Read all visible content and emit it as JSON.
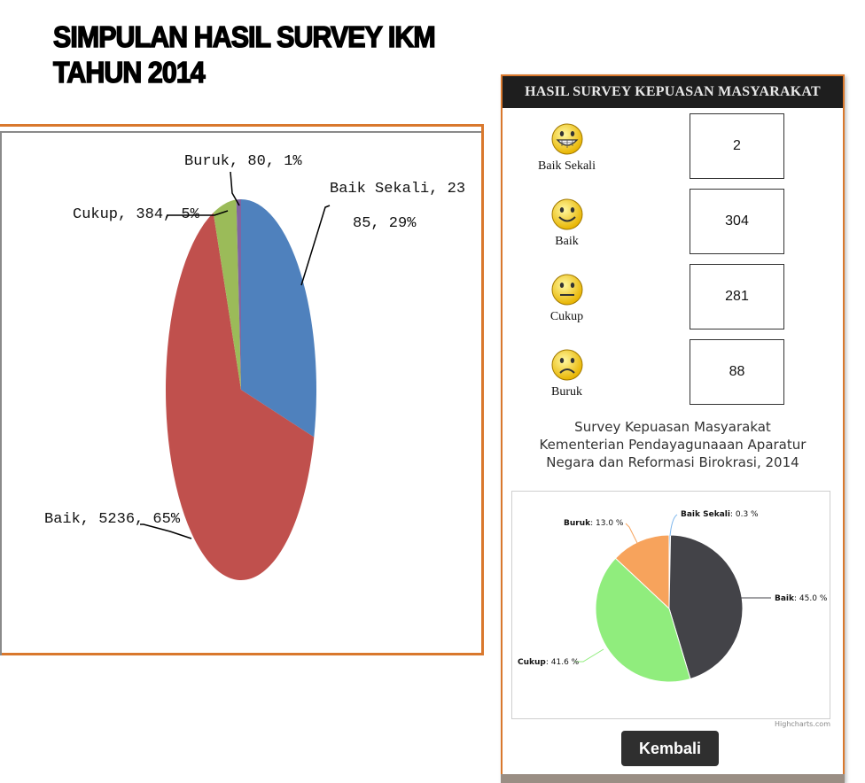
{
  "page_title": {
    "line1": "SIMPULAN HASIL SURVEY IKM",
    "line2": "TAHUN 2014"
  },
  "right_panel": {
    "header": "HASIL SURVEY KEPUASAN MASYARAKAT",
    "ratings": [
      {
        "label": "Baik Sekali",
        "count": "2",
        "icon": "grin-smiley-icon"
      },
      {
        "label": "Baik",
        "count": "304",
        "icon": "smile-smiley-icon"
      },
      {
        "label": "Cukup",
        "count": "281",
        "icon": "neutral-smiley-icon"
      },
      {
        "label": "Buruk",
        "count": "88",
        "icon": "sad-smiley-icon"
      }
    ],
    "caption": {
      "line1": "Survey Kepuasan Masyarakat",
      "line2": "Kementerian Pendayagunaaan Aparatur",
      "line3": "Negara dan Reformasi Birokrasi, 2014"
    },
    "credits": "Highcharts.com",
    "back_button": "Kembali"
  },
  "chart_data": [
    {
      "type": "pie",
      "slices": [
        {
          "name": "Baik Sekali",
          "value": 2385,
          "percent": 29,
          "color": "#4f81bd",
          "label_line1": "Baik Sekali, 23",
          "label_line2": "85, 29%"
        },
        {
          "name": "Baik",
          "value": 5236,
          "percent": 65,
          "color": "#c0504d",
          "label": "Baik, 5236, 65%"
        },
        {
          "name": "Cukup",
          "value": 384,
          "percent": 5,
          "color": "#9bbb59",
          "label": "Cukup, 384, 5%"
        },
        {
          "name": "Buruk",
          "value": 80,
          "percent": 1,
          "color": "#8064a2",
          "label": "Buruk, 80, 1%"
        }
      ]
    },
    {
      "type": "pie",
      "slices": [
        {
          "name": "Baik Sekali",
          "percent": 0.3,
          "value_text": "0.3 %",
          "color": "#7cb5ec"
        },
        {
          "name": "Baik",
          "percent": 45.0,
          "value_text": "45.0 %",
          "color": "#434348"
        },
        {
          "name": "Cukup",
          "percent": 41.6,
          "value_text": "41.6 %",
          "color": "#90ed7d"
        },
        {
          "name": "Buruk",
          "percent": 13.0,
          "value_text": "13.0 %",
          "color": "#f7a35c"
        }
      ]
    }
  ]
}
